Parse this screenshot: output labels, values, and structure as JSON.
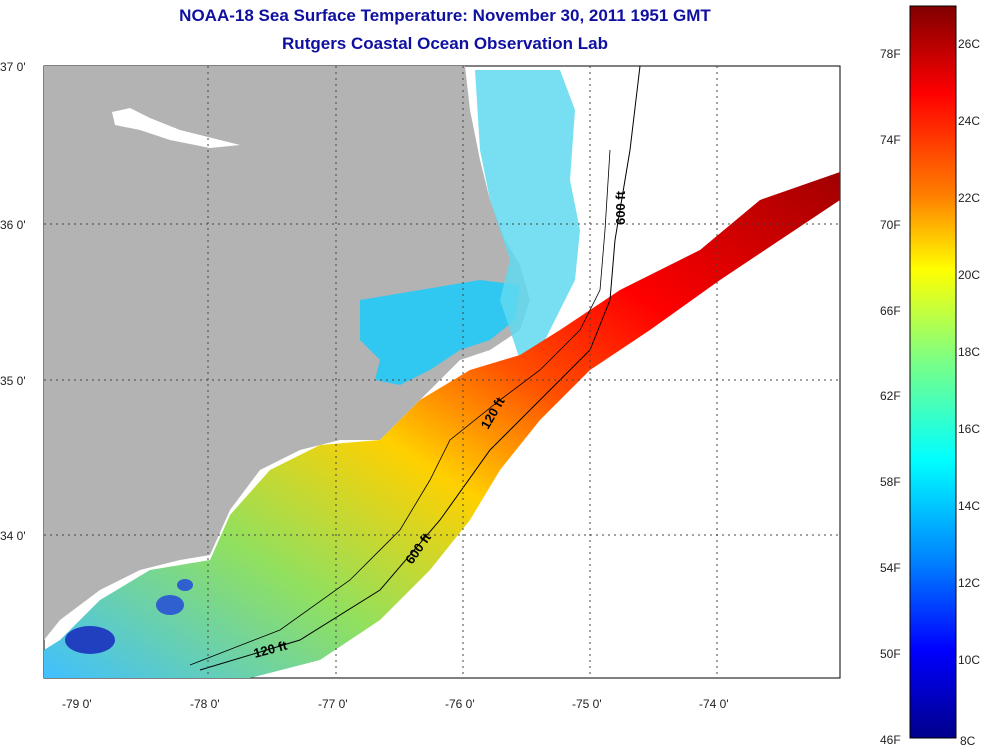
{
  "header": {
    "title": "NOAA-18 Sea Surface Temperature:  November 30, 2011 1951 GMT",
    "subtitle": "Rutgers Coastal Ocean Observation Lab"
  },
  "map": {
    "lat_labels": [
      "37 0'",
      "36 0'",
      "35 0'",
      "34 0'"
    ],
    "lon_labels": [
      "-79 0'",
      "-78 0'",
      "-77 0'",
      "-76 0'",
      "-75 0'",
      "-74 0'"
    ],
    "contour_labels": [
      "600 ft",
      "120 ft",
      "600 ft",
      "120 ft"
    ],
    "colors": {
      "land": "#b3b3b3",
      "ocean_nodata": "#ffffff"
    }
  },
  "colorbar": {
    "f_labels": [
      "78F",
      "74F",
      "70F",
      "66F",
      "62F",
      "58F",
      "54F",
      "50F",
      "46F"
    ],
    "c_labels": [
      "26C",
      "24C",
      "22C",
      "20C",
      "18C",
      "16C",
      "14C",
      "12C",
      "10C",
      "8C"
    ],
    "gradient": [
      "#8b0000",
      "#ff0000",
      "#ff8000",
      "#ffff00",
      "#80ff80",
      "#00ffff",
      "#0080ff",
      "#0000ff",
      "#00008b"
    ]
  }
}
